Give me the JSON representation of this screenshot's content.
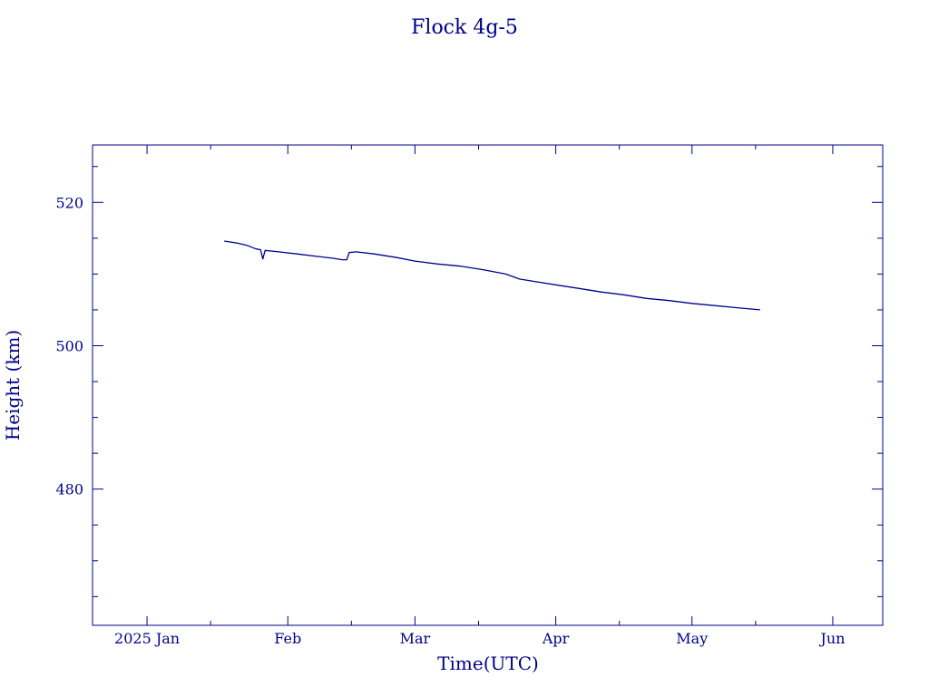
{
  "chart_data": {
    "type": "line",
    "title": "Flock 4g-5",
    "xlabel": "Time(UTC)",
    "ylabel": "Height (km)",
    "color": "#00008b",
    "grid": false,
    "xlim": [
      "2024-12-20",
      "2025-06-12"
    ],
    "ylim": [
      461,
      528
    ],
    "x_ticks": [
      {
        "date": "2025-01-01",
        "label": "2025 Jan"
      },
      {
        "date": "2025-02-01",
        "label": "Feb"
      },
      {
        "date": "2025-03-01",
        "label": "Mar"
      },
      {
        "date": "2025-04-01",
        "label": "Apr"
      },
      {
        "date": "2025-05-01",
        "label": "May"
      },
      {
        "date": "2025-06-01",
        "label": "Jun"
      }
    ],
    "x_minor_ticks": [
      "2025-01-15",
      "2025-02-15",
      "2025-03-15",
      "2025-04-15",
      "2025-05-15"
    ],
    "y_ticks": [
      480,
      500,
      520
    ],
    "y_minor_ticks": [
      465,
      470,
      475,
      485,
      490,
      495,
      505,
      510,
      515,
      525
    ],
    "series": [
      {
        "name": "",
        "points": [
          [
            "2025-01-18",
            514.6
          ],
          [
            "2025-01-21",
            514.3
          ],
          [
            "2025-01-23",
            514.0
          ],
          [
            "2025-01-25",
            513.5
          ],
          [
            "2025-01-26",
            513.4
          ],
          [
            "2025-01-26T12:00",
            512.1
          ],
          [
            "2025-01-27",
            513.3
          ],
          [
            "2025-01-30",
            513.1
          ],
          [
            "2025-02-03",
            512.8
          ],
          [
            "2025-02-07",
            512.5
          ],
          [
            "2025-02-11",
            512.2
          ],
          [
            "2025-02-13",
            512.0
          ],
          [
            "2025-02-14",
            512.0
          ],
          [
            "2025-02-14T12:00",
            513.0
          ],
          [
            "2025-02-16",
            513.1
          ],
          [
            "2025-02-20",
            512.8
          ],
          [
            "2025-02-25",
            512.3
          ],
          [
            "2025-03-01",
            511.8
          ],
          [
            "2025-03-06",
            511.4
          ],
          [
            "2025-03-11",
            511.1
          ],
          [
            "2025-03-16",
            510.6
          ],
          [
            "2025-03-21",
            510.0
          ],
          [
            "2025-03-24",
            509.3
          ],
          [
            "2025-03-28",
            508.9
          ],
          [
            "2025-04-01",
            508.5
          ],
          [
            "2025-04-06",
            508.0
          ],
          [
            "2025-04-11",
            507.5
          ],
          [
            "2025-04-16",
            507.1
          ],
          [
            "2025-04-21",
            506.6
          ],
          [
            "2025-04-26",
            506.3
          ],
          [
            "2025-05-01",
            505.9
          ],
          [
            "2025-05-06",
            505.6
          ],
          [
            "2025-05-11",
            505.3
          ],
          [
            "2025-05-16",
            505.0
          ]
        ]
      }
    ]
  }
}
